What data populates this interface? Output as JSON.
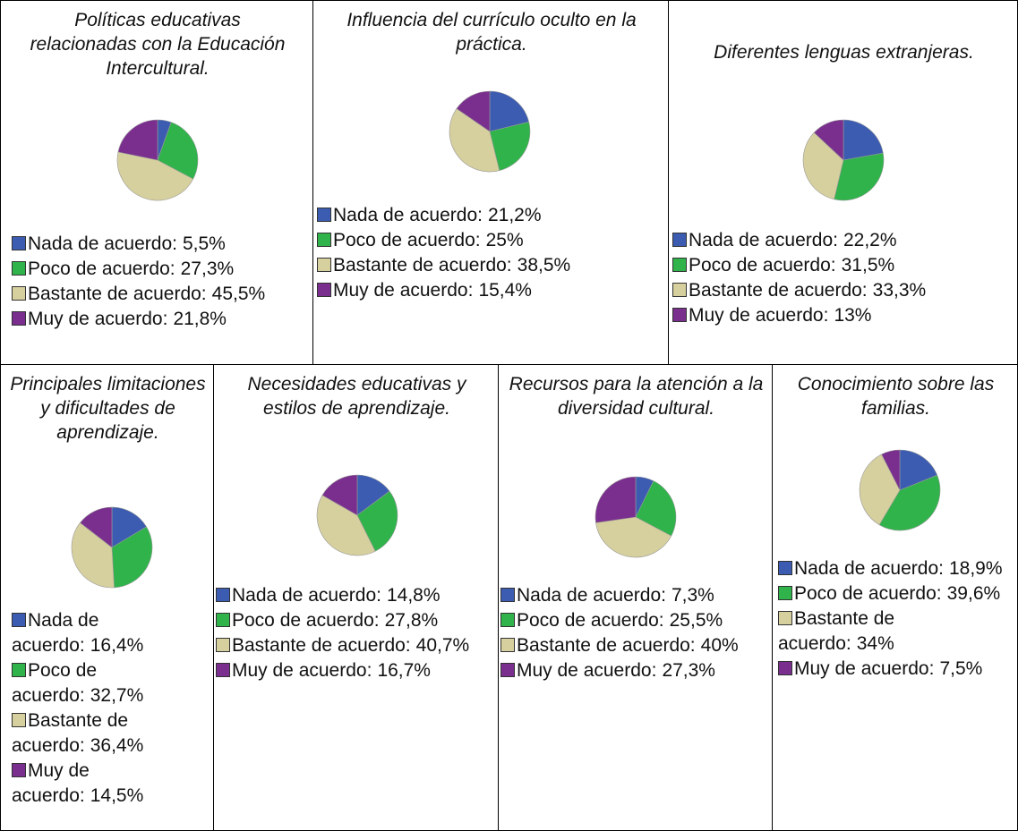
{
  "chart_data": [
    {
      "type": "pie",
      "title": "Políticas educativas relacionadas con la Educación Intercultural.",
      "categories": [
        "Nada de acuerdo:",
        "Poco de acuerdo:",
        "Bastante de acuerdo:",
        "Muy de acuerdo:"
      ],
      "values": [
        5.5,
        27.3,
        45.5,
        21.8
      ],
      "value_labels": [
        "5,5%",
        "27,3%",
        "45,5%",
        "21,8%"
      ],
      "colors": [
        "#3b5cb0",
        "#2fb34a",
        "#d6cf9e",
        "#7a2f8e"
      ]
    },
    {
      "type": "pie",
      "title": "Influencia del currículo oculto en la práctica.",
      "categories": [
        "Nada de acuerdo:",
        "Poco de acuerdo:",
        "Bastante de acuerdo:",
        "Muy de acuerdo:"
      ],
      "values": [
        21.2,
        25,
        38.5,
        15.4
      ],
      "value_labels": [
        "21,2%",
        "25%",
        "38,5%",
        "15,4%"
      ],
      "colors": [
        "#3b5cb0",
        "#2fb34a",
        "#d6cf9e",
        "#7a2f8e"
      ]
    },
    {
      "type": "pie",
      "title": "Diferentes lenguas extranjeras.",
      "categories": [
        "Nada de acuerdo:",
        "Poco de acuerdo:",
        "Bastante de acuerdo:",
        "Muy de acuerdo:"
      ],
      "values": [
        22.2,
        31.5,
        33.3,
        13
      ],
      "value_labels": [
        "22,2%",
        "31,5%",
        "33,3%",
        "13%"
      ],
      "colors": [
        "#3b5cb0",
        "#2fb34a",
        "#d6cf9e",
        "#7a2f8e"
      ]
    },
    {
      "type": "pie",
      "title": "Principales limitaciones y dificultades de aprendizaje.",
      "categories": [
        "Nada de acuerdo:",
        "Poco de acuerdo:",
        "Bastante de acuerdo:",
        "Muy de acuerdo:"
      ],
      "values": [
        16.4,
        32.7,
        36.4,
        14.5
      ],
      "value_labels": [
        "16,4%",
        "32,7%",
        "36,4%",
        "14,5%"
      ],
      "colors": [
        "#3b5cb0",
        "#2fb34a",
        "#d6cf9e",
        "#7a2f8e"
      ]
    },
    {
      "type": "pie",
      "title": "Necesidades educativas y estilos de aprendizaje.",
      "categories": [
        "Nada de acuerdo:",
        "Poco de acuerdo:",
        "Bastante de acuerdo:",
        "Muy de acuerdo:"
      ],
      "values": [
        14.8,
        27.8,
        40.7,
        16.7
      ],
      "value_labels": [
        "14,8%",
        "27,8%",
        "40,7%",
        "16,7%"
      ],
      "colors": [
        "#3b5cb0",
        "#2fb34a",
        "#d6cf9e",
        "#7a2f8e"
      ]
    },
    {
      "type": "pie",
      "title": "Recursos para la atención a la diversidad cultural.",
      "categories": [
        "Nada de acuerdo:",
        "Poco de acuerdo:",
        "Bastante de acuerdo:",
        "Muy de acuerdo:"
      ],
      "values": [
        7.3,
        25.5,
        40,
        27.3
      ],
      "value_labels": [
        "7,3%",
        "25,5%",
        "40%",
        "27,3%"
      ],
      "colors": [
        "#3b5cb0",
        "#2fb34a",
        "#d6cf9e",
        "#7a2f8e"
      ]
    },
    {
      "type": "pie",
      "title": "Conocimiento sobre las familias.",
      "categories": [
        "Nada de acuerdo:",
        "Poco de acuerdo:",
        "Bastante de acuerdo:",
        "Muy de acuerdo:"
      ],
      "values": [
        18.9,
        39.6,
        34,
        7.5
      ],
      "value_labels": [
        "18,9%",
        "39,6%",
        "34%",
        "7,5%"
      ],
      "colors": [
        "#3b5cb0",
        "#2fb34a",
        "#d6cf9e",
        "#7a2f8e"
      ]
    }
  ]
}
